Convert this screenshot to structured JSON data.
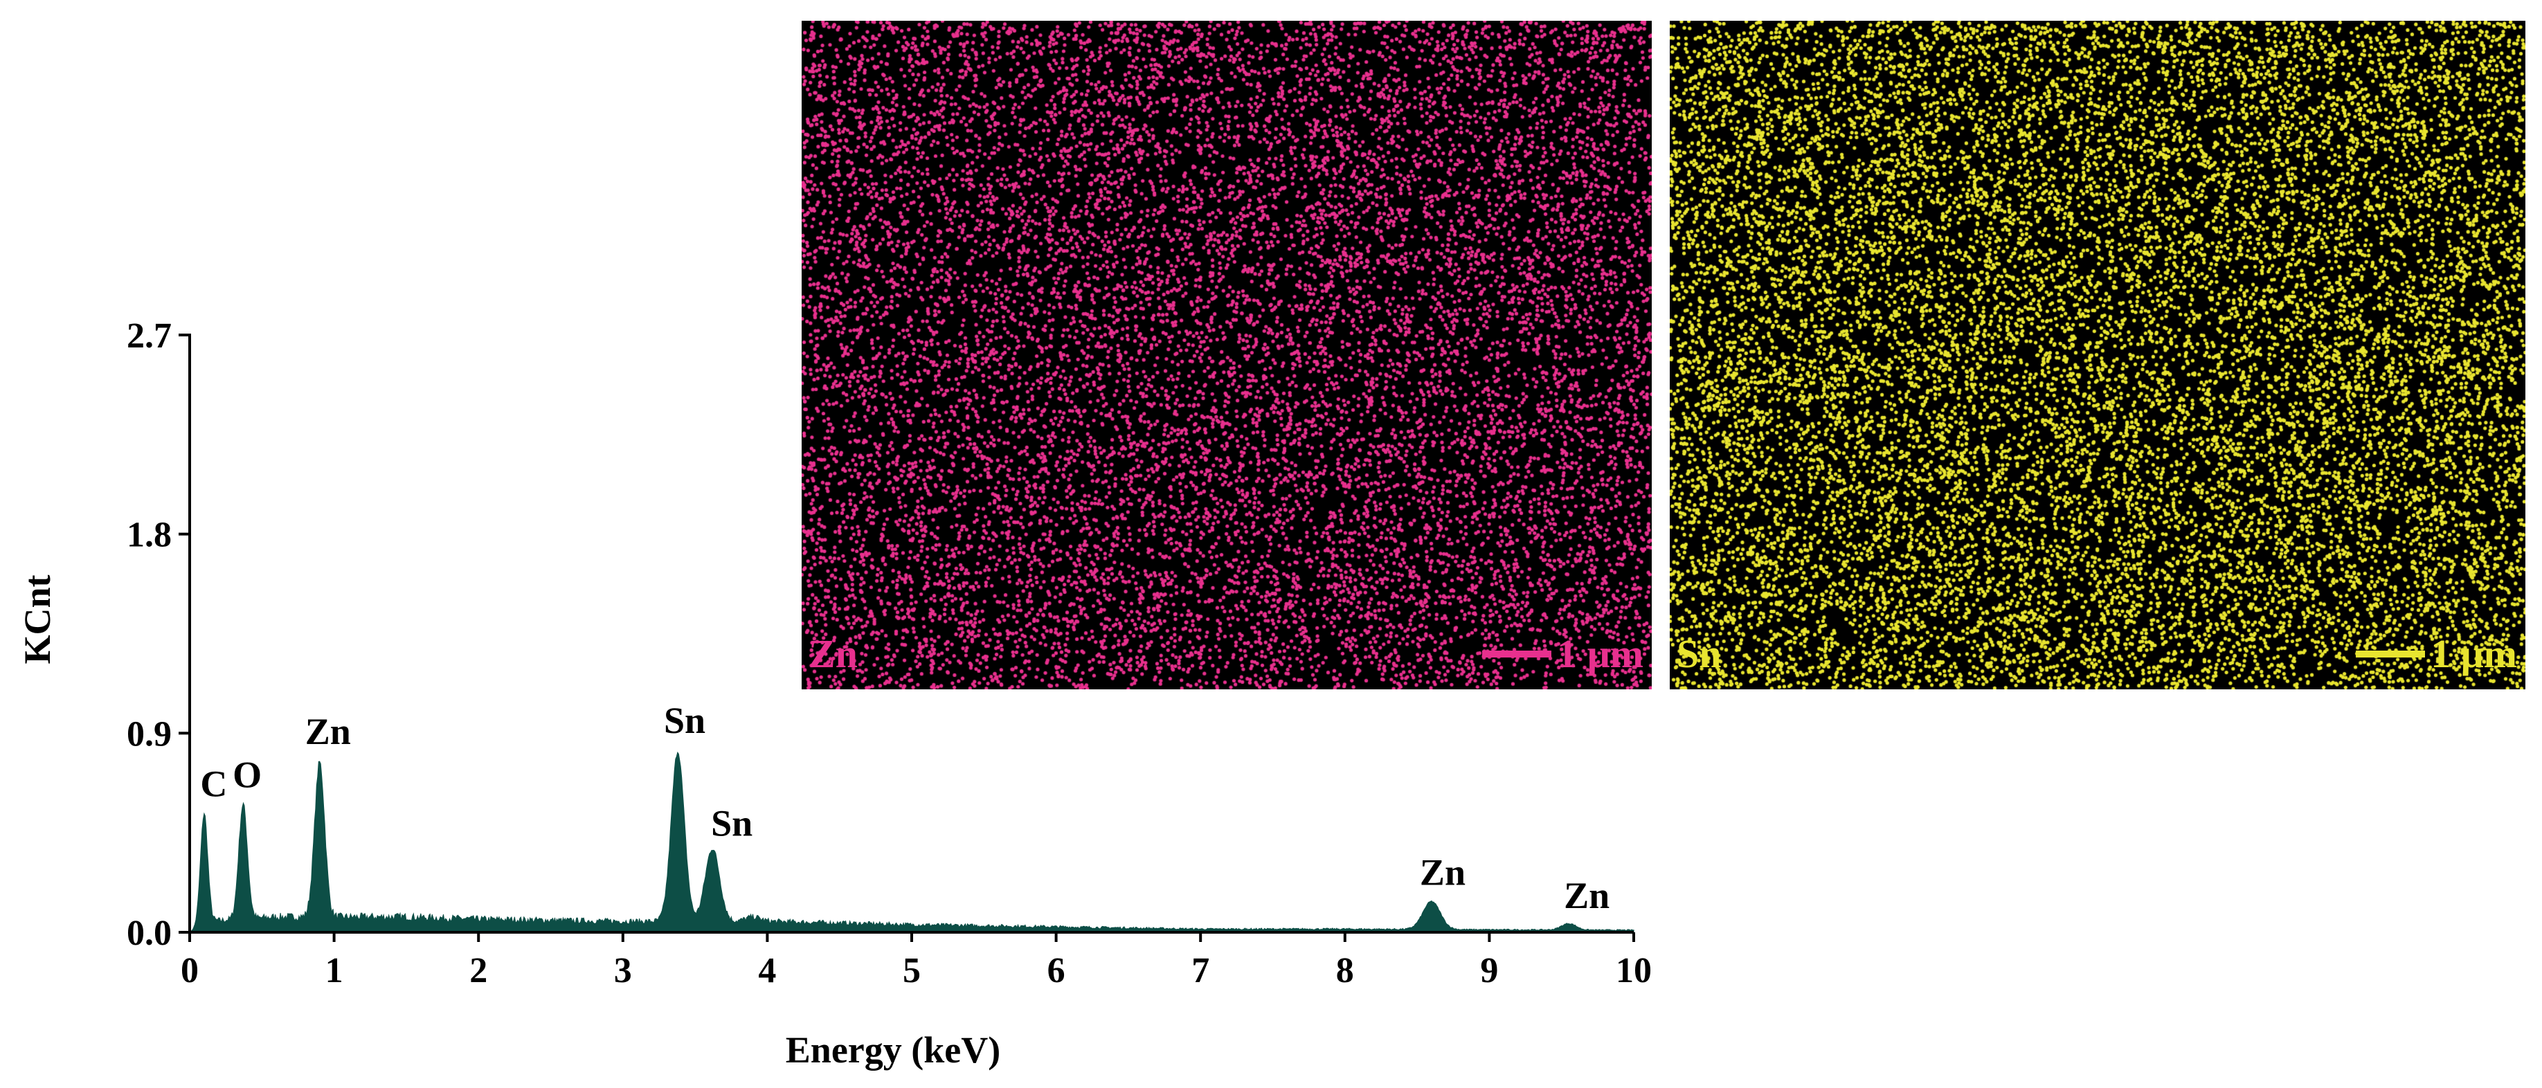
{
  "chart_data": {
    "type": "area",
    "xlabel": "Energy (keV)",
    "ylabel": "KCnt",
    "xlim": [
      0,
      10
    ],
    "ylim": [
      0,
      2.7
    ],
    "xticks": [
      "0",
      "1",
      "2",
      "3",
      "4",
      "5",
      "6",
      "7",
      "8",
      "9",
      "10"
    ],
    "yticks": [
      "0.0",
      "0.9",
      "1.8",
      "2.7"
    ],
    "fill_color": "#0d4e46",
    "baseline": [
      {
        "x": 0.1,
        "y": 0.05
      },
      {
        "x": 0.6,
        "y": 0.07
      },
      {
        "x": 1.5,
        "y": 0.07
      },
      {
        "x": 2.0,
        "y": 0.06
      },
      {
        "x": 3.0,
        "y": 0.05
      },
      {
        "x": 4.0,
        "y": 0.05
      },
      {
        "x": 5.0,
        "y": 0.035
      },
      {
        "x": 6.0,
        "y": 0.025
      },
      {
        "x": 7.0,
        "y": 0.015
      },
      {
        "x": 8.0,
        "y": 0.015
      },
      {
        "x": 9.0,
        "y": 0.012
      },
      {
        "x": 10.0,
        "y": 0.01
      }
    ],
    "peaks": [
      {
        "label": "C",
        "x": 0.1,
        "y": 0.54,
        "width": 0.025
      },
      {
        "label": "O",
        "x": 0.37,
        "y": 0.58,
        "width": 0.03
      },
      {
        "label": "Zn",
        "x": 0.9,
        "y": 0.77,
        "width": 0.035
      },
      {
        "label": "Sn",
        "x": 3.38,
        "y": 0.82,
        "width": 0.045
      },
      {
        "label": "Sn",
        "x": 3.62,
        "y": 0.38,
        "width": 0.05
      },
      {
        "label": "",
        "x": 3.9,
        "y": 0.07,
        "width": 0.05
      },
      {
        "label": "Zn",
        "x": 8.6,
        "y": 0.14,
        "width": 0.06
      },
      {
        "label": "Zn",
        "x": 9.55,
        "y": 0.04,
        "width": 0.05
      }
    ]
  },
  "maps": [
    {
      "element": "Zn",
      "color": "#e8308e",
      "scale_label": "1 μm"
    },
    {
      "element": "Sn",
      "color": "#e8e430",
      "scale_label": "1 μm"
    }
  ]
}
